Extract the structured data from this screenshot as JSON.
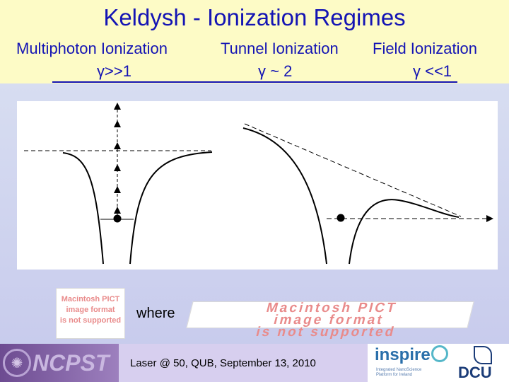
{
  "slide": {
    "title": "Keldysh - Ionization Regimes",
    "regimes": [
      {
        "label": "Multiphoton Ionization",
        "gamma": "γ>>1"
      },
      {
        "label": "Tunnel Ionization",
        "gamma": "γ ~ 2"
      },
      {
        "label": "Field Ionization",
        "gamma": "γ <<1"
      }
    ],
    "where_text": "where",
    "pict_small": [
      "Macintosh PICT",
      "image format",
      "is not supported"
    ],
    "pict_wide": [
      "Macintosh PICT",
      "image format",
      "is not supported"
    ]
  },
  "footer": {
    "caption": "Laser @ 50, QUB, September 13, 2010",
    "left_logo": "NCPST",
    "inspire_logo": "inspire",
    "inspire_sub": "Integrated NanoScience Platform for Ireland",
    "dcu_logo": "DCU"
  },
  "colors": {
    "title": "#1414b4",
    "header_bg": "#fdfbc6",
    "body_bg": "#c6c9ec",
    "pict_text": "#e98b8b"
  },
  "icons": {
    "ncpst": "ncpst-emblem-icon",
    "inspire": "inspire-ring-icon",
    "dcu": "dcu-mark-icon"
  }
}
